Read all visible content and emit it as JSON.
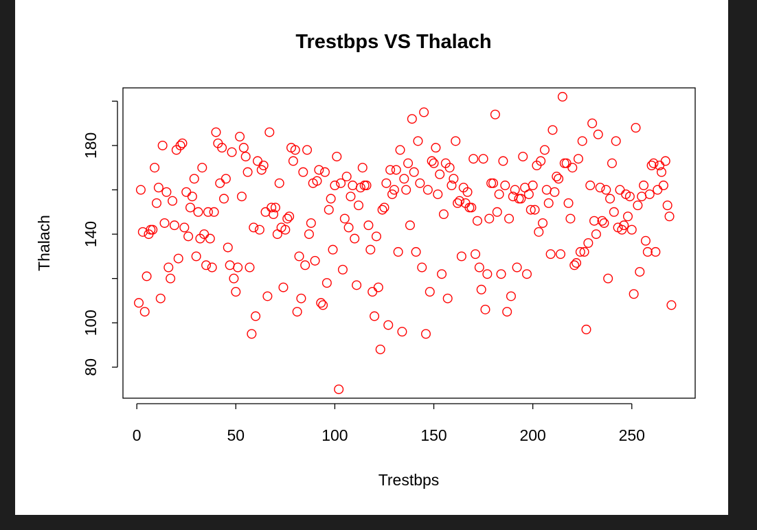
{
  "chart_data": {
    "type": "scatter",
    "title": "Trestbps VS Thalach",
    "xlabel": "Trestbps",
    "ylabel": "Thalach",
    "xlim": [
      -7,
      282
    ],
    "ylim": [
      66,
      206
    ],
    "xticks": [
      0,
      50,
      100,
      150,
      200,
      250
    ],
    "yticks": [
      80,
      100,
      140,
      180
    ],
    "ytick_minor": [
      120,
      160,
      200
    ],
    "grid": false,
    "legend": "none",
    "marker": "open-circle",
    "color": "#ff0000",
    "series": [
      {
        "x": [
          1,
          2,
          3,
          4,
          5,
          6,
          7,
          8,
          9,
          10,
          11,
          12,
          13,
          14,
          15,
          16,
          17,
          18,
          19,
          20,
          21,
          22,
          23,
          24,
          25,
          26,
          27,
          28,
          29,
          30,
          31,
          32,
          33,
          34,
          35,
          36,
          37,
          38,
          39,
          40,
          41,
          42,
          43,
          44,
          45,
          46,
          47,
          48,
          49,
          50,
          51,
          52,
          53,
          54,
          55,
          56,
          57,
          58,
          59,
          60,
          61,
          62,
          63,
          64,
          65,
          66,
          67,
          68,
          69,
          70,
          71,
          72,
          73,
          74,
          75,
          76,
          77,
          78,
          79,
          80,
          81,
          82,
          83,
          84,
          85,
          86,
          87,
          88,
          89,
          90,
          91,
          92,
          93,
          94,
          95,
          96,
          97,
          98,
          99,
          100,
          101,
          102,
          103,
          104,
          105,
          106,
          107,
          108,
          109,
          110,
          111,
          112,
          113,
          114,
          115,
          116,
          117,
          118,
          119,
          120,
          121,
          122,
          123,
          124,
          125,
          126,
          127,
          128,
          129,
          130,
          131,
          132,
          133,
          134,
          135,
          136,
          137,
          138,
          139,
          140,
          141,
          142,
          143,
          144,
          145,
          146,
          147,
          148,
          149,
          150,
          151,
          152,
          153,
          154,
          155,
          156,
          157,
          158,
          159,
          160,
          161,
          162,
          163,
          164,
          165,
          166,
          167,
          168,
          169,
          170,
          171,
          172,
          173,
          174,
          175,
          176,
          177,
          178,
          179,
          180,
          181,
          182,
          183,
          184,
          185,
          186,
          187,
          188,
          189,
          190,
          191,
          192,
          193,
          194,
          195,
          196,
          197,
          198,
          199,
          200,
          201,
          202,
          203,
          204,
          205,
          206,
          207,
          208,
          209,
          210,
          211,
          212,
          213,
          214,
          215,
          216,
          217,
          218,
          219,
          220,
          221,
          222,
          223,
          224,
          225,
          226,
          227,
          228,
          229,
          230,
          231,
          232,
          233,
          234,
          235,
          236,
          237,
          238,
          239,
          240,
          241,
          242,
          243,
          244,
          245,
          246,
          247,
          248,
          249,
          250,
          251,
          252,
          253,
          254,
          255,
          256,
          257,
          258,
          259,
          260,
          261,
          262,
          263,
          264,
          265,
          266,
          267,
          268,
          269,
          270
        ],
        "y": [
          109,
          160,
          141,
          105,
          121,
          140,
          142,
          142,
          170,
          154,
          161,
          111,
          180,
          145,
          159,
          125,
          120,
          155,
          144,
          178,
          129,
          180,
          181,
          143,
          159,
          139,
          152,
          157,
          165,
          130,
          150,
          138,
          170,
          140,
          126,
          150,
          138,
          125,
          150,
          186,
          181,
          163,
          179,
          156,
          165,
          134,
          126,
          177,
          120,
          114,
          125,
          184,
          157,
          179,
          175,
          168,
          125,
          95,
          143,
          103,
          173,
          142,
          169,
          171,
          150,
          112,
          186,
          152,
          149,
          152,
          140,
          163,
          143,
          116,
          142,
          147,
          148,
          179,
          173,
          178,
          105,
          130,
          111,
          168,
          126,
          178,
          140,
          145,
          163,
          128,
          164,
          169,
          109,
          108,
          168,
          118,
          151,
          156,
          133,
          162,
          175,
          70,
          163,
          124,
          147,
          166,
          143,
          157,
          162,
          138,
          117,
          153,
          161,
          170,
          162,
          162,
          144,
          133,
          114,
          103,
          139,
          116,
          88,
          151,
          152,
          163,
          99,
          169,
          158,
          160,
          169,
          132,
          178,
          96,
          165,
          160,
          172,
          144,
          192,
          168,
          132,
          182,
          163,
          125,
          195,
          95,
          160,
          114,
          173,
          172,
          179,
          158,
          167,
          122,
          149,
          172,
          111,
          170,
          162,
          165,
          182,
          154,
          155,
          130,
          161,
          154,
          159,
          152,
          152,
          174,
          131,
          146,
          125,
          115,
          174,
          106,
          122,
          147,
          163,
          163,
          194,
          150,
          158,
          122,
          173,
          162,
          105,
          147,
          112,
          157,
          160,
          125,
          156,
          156,
          175,
          161,
          122,
          158,
          151,
          162,
          151,
          171,
          141,
          173,
          145,
          178,
          160,
          154,
          131,
          187,
          159,
          166,
          165,
          131,
          202,
          172,
          172,
          154,
          147,
          170,
          126,
          127,
          174,
          132,
          182,
          132,
          97,
          136,
          162,
          190,
          146,
          140,
          185,
          161,
          146,
          145,
          160,
          120,
          156,
          172,
          150,
          182,
          143,
          160,
          142,
          144,
          158,
          148,
          157,
          142,
          113,
          188,
          153,
          123,
          157,
          162,
          137,
          132,
          158,
          171,
          172,
          132,
          160,
          171,
          168,
          162,
          173,
          153,
          148,
          108
        ]
      }
    ]
  }
}
